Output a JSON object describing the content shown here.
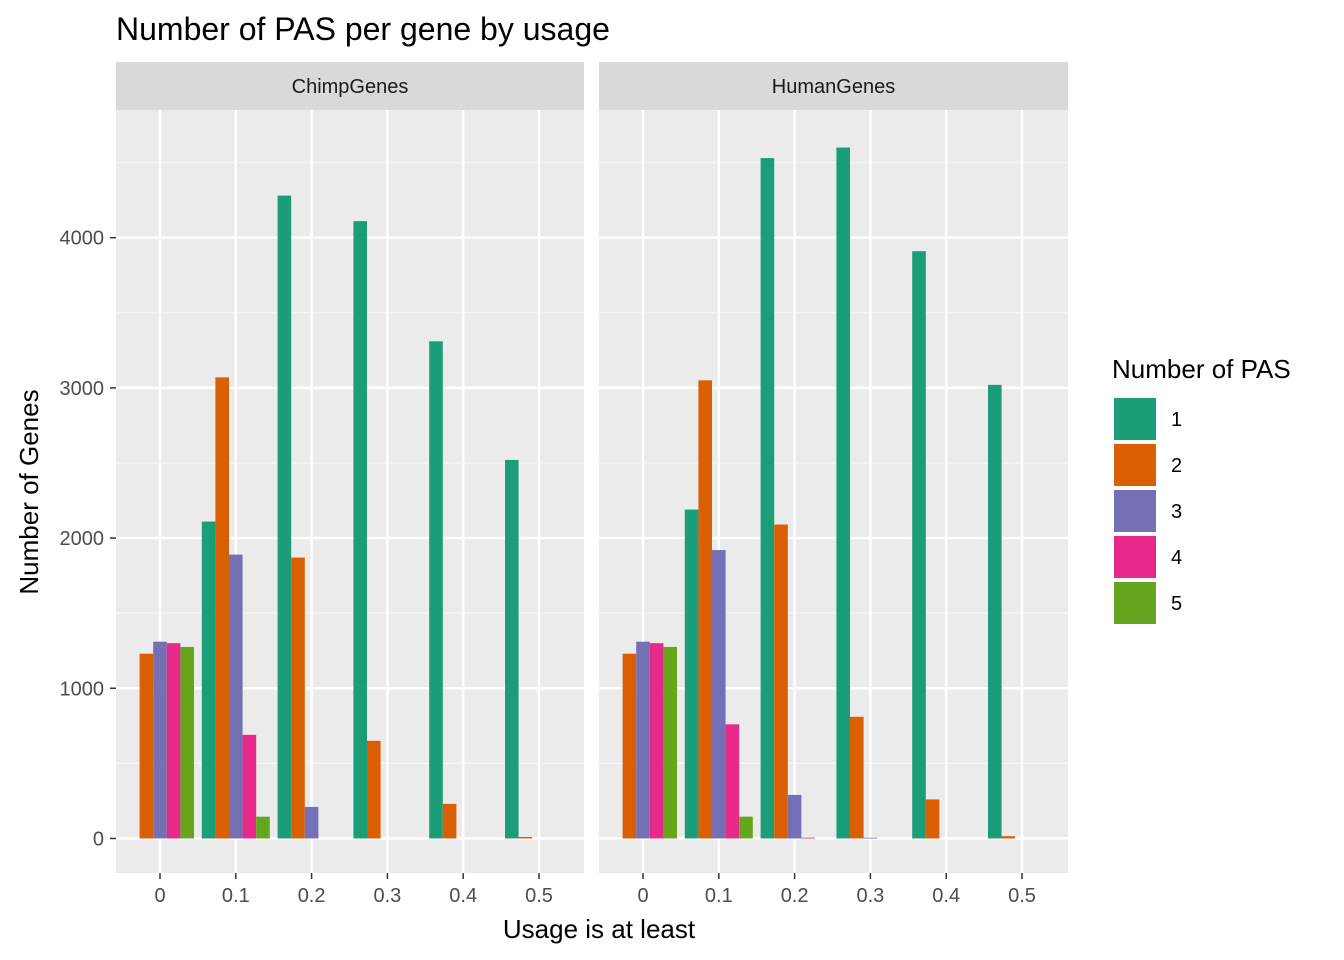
{
  "chart_data": {
    "type": "bar",
    "title": "Number of PAS per gene by usage",
    "xlabel": "Usage is at least",
    "ylabel": "Number of Genes",
    "categories": [
      "0",
      "0.1",
      "0.2",
      "0.3",
      "0.4",
      "0.5"
    ],
    "ylim": [
      -230,
      4850
    ],
    "y_ticks": [
      0,
      1000,
      2000,
      3000,
      4000
    ],
    "y_tick_labels": [
      "0",
      "1000",
      "2000",
      "3000",
      "4000"
    ],
    "grid": true,
    "legend": {
      "title": "Number of PAS",
      "position": "right",
      "entries": [
        "1",
        "2",
        "3",
        "4",
        "5"
      ],
      "colors": [
        "#1b9e77",
        "#d95f02",
        "#7570b3",
        "#e7298a",
        "#66a61e"
      ]
    },
    "panels": [
      {
        "name": "ChimpGenes",
        "series": [
          {
            "name": "1",
            "values": [
              0,
              2110,
              4280,
              4110,
              3310,
              2520
            ]
          },
          {
            "name": "2",
            "values": [
              1230,
              3070,
              1870,
              650,
              230,
              10
            ]
          },
          {
            "name": "3",
            "values": [
              1310,
              1890,
              210,
              0,
              0,
              0
            ]
          },
          {
            "name": "4",
            "values": [
              1300,
              690,
              0,
              0,
              0,
              0
            ]
          },
          {
            "name": "5",
            "values": [
              1275,
              145,
              0,
              0,
              0,
              0
            ]
          }
        ]
      },
      {
        "name": "HumanGenes",
        "series": [
          {
            "name": "1",
            "values": [
              0,
              2190,
              4530,
              4600,
              3910,
              3020
            ]
          },
          {
            "name": "2",
            "values": [
              1230,
              3050,
              2090,
              810,
              260,
              15
            ]
          },
          {
            "name": "3",
            "values": [
              1310,
              1920,
              290,
              5,
              0,
              0
            ]
          },
          {
            "name": "4",
            "values": [
              1300,
              760,
              5,
              0,
              0,
              0
            ]
          },
          {
            "name": "5",
            "values": [
              1275,
              145,
              0,
              0,
              0,
              0
            ]
          }
        ]
      }
    ]
  }
}
